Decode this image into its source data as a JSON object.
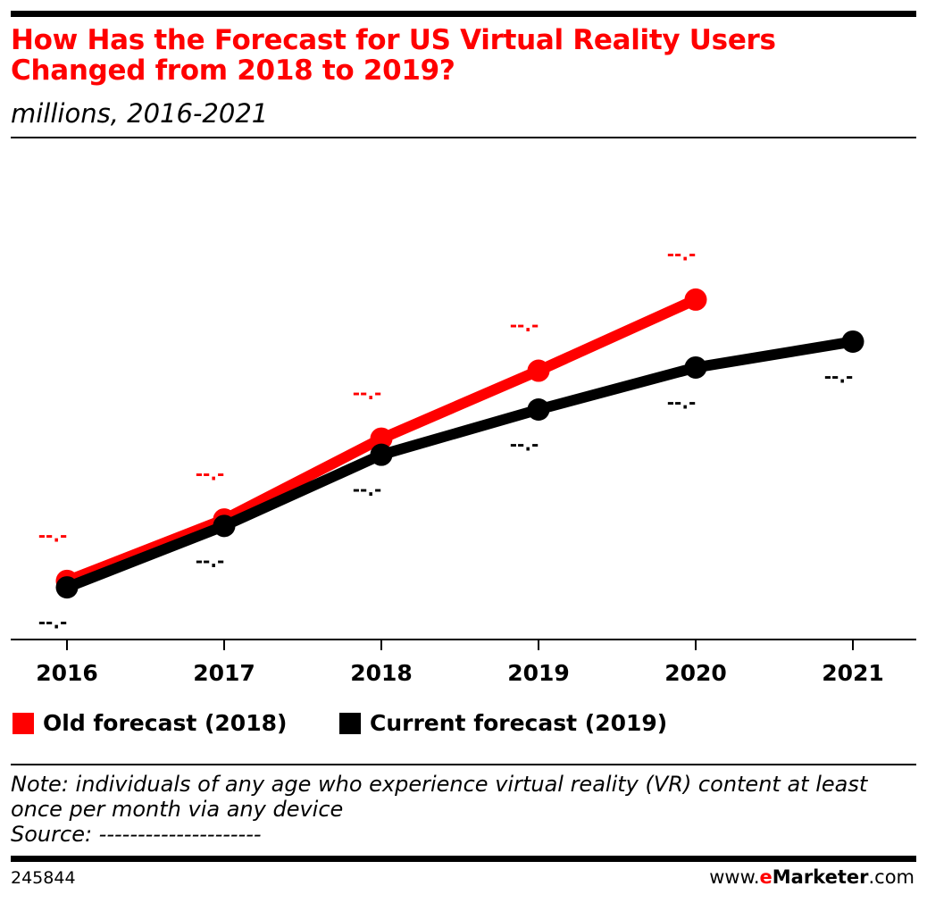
{
  "header": {
    "title": "How Has the Forecast for US Virtual Reality Users Changed from 2018 to 2019?",
    "subtitle": "millions, 2016-2021"
  },
  "colors": {
    "old": "#ff0000",
    "current": "#000000",
    "brand": "#ff0000"
  },
  "chart_data": {
    "type": "line",
    "title": "How Has the Forecast for US Virtual Reality Users Changed from 2018 to 2019?",
    "subtitle": "millions, 2016-2021",
    "x": [
      "2016",
      "2017",
      "2018",
      "2019",
      "2020",
      "2021"
    ],
    "xlabel": "",
    "ylabel": "",
    "ylim": [
      0,
      55
    ],
    "grid": false,
    "legend": "bottom-left",
    "series": [
      {
        "name": "Old forecast (2018)",
        "color": "#ff0000",
        "values": [
          11.0,
          20.5,
          33.0,
          43.5,
          54.5,
          null
        ],
        "labels": [
          "--.-",
          "--.-",
          "--.-",
          "--.-",
          "--.-",
          null
        ]
      },
      {
        "name": "Current forecast (2019)",
        "color": "#000000",
        "values": [
          10.0,
          19.5,
          30.5,
          37.5,
          44.0,
          48.0
        ],
        "labels": [
          "--.-",
          "--.-",
          "--.-",
          "--.-",
          "--.-",
          "--.-"
        ]
      }
    ]
  },
  "legend": {
    "old_label": "Old forecast (2018)",
    "current_label": "Current forecast (2019)"
  },
  "footer": {
    "note": "Note: individuals of any age who experience virtual reality (VR) content at least once per month via any device",
    "source": "Source: ---------------------",
    "chart_id": "245844",
    "brand_prefix": "www.",
    "brand_e": "e",
    "brand_name": "Marketer",
    "brand_suffix": ".com"
  }
}
